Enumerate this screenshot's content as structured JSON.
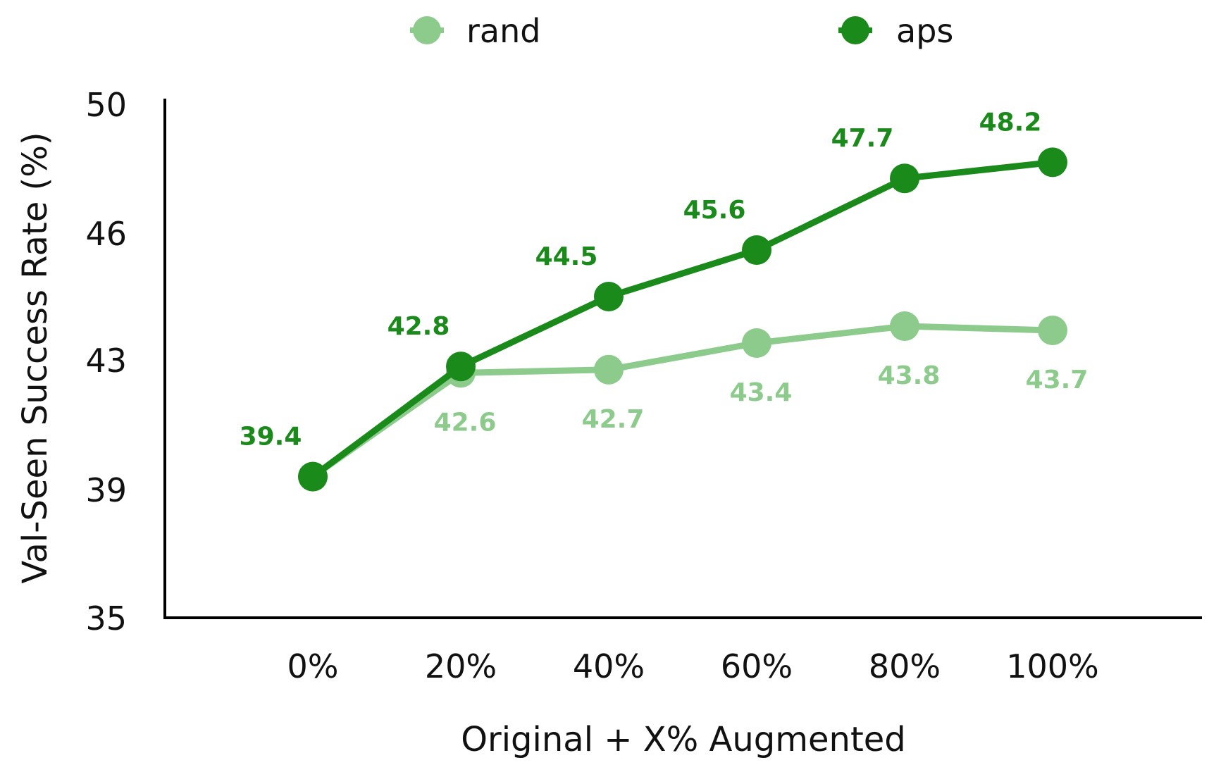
{
  "chart_data": {
    "type": "line",
    "xlabel": "Original + X% Augmented",
    "ylabel": "Val-Seen Success Rate (%)",
    "categories": [
      "0%",
      "20%",
      "40%",
      "60%",
      "80%",
      "100%"
    ],
    "yticks": [
      35,
      39,
      43,
      46,
      50
    ],
    "grid": false,
    "legend_position": "top",
    "series": [
      {
        "name": "rand",
        "color": "#8ccb8c",
        "values": [
          39.4,
          42.6,
          42.7,
          43.4,
          43.8,
          43.7
        ],
        "labels": [
          "",
          "42.6",
          "42.7",
          "43.4",
          "43.8",
          "43.7"
        ]
      },
      {
        "name": "aps",
        "color": "#1a8a1a",
        "values": [
          39.4,
          42.8,
          44.5,
          45.6,
          47.7,
          48.2
        ],
        "labels": [
          "39.4",
          "42.8",
          "44.5",
          "45.6",
          "47.7",
          "48.2"
        ]
      }
    ]
  }
}
